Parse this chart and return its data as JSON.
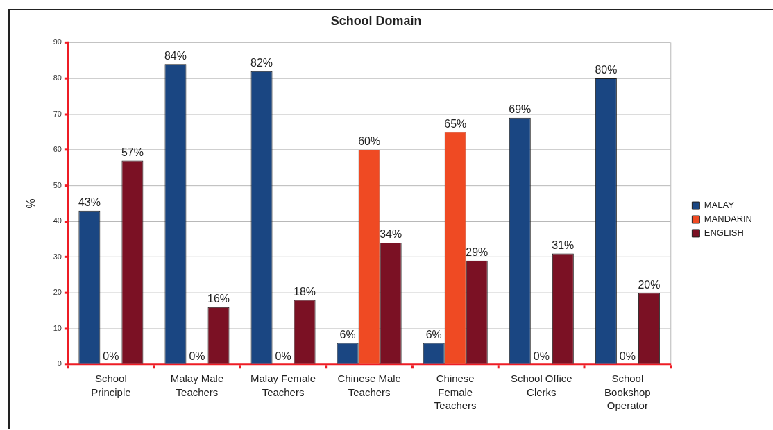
{
  "chart_data": {
    "type": "bar",
    "title": "School Domain",
    "ylabel": "%",
    "categories": [
      "School Principle",
      "Malay Male Teachers",
      "Malay Female Teachers",
      "Chinese Male Teachers",
      "Chinese Female Teachers",
      "School Office Clerks",
      "School Bookshop Operator"
    ],
    "series": [
      {
        "name": "MALAY",
        "color": "#1a4682",
        "values": [
          43,
          84,
          82,
          6,
          6,
          69,
          80
        ],
        "value_labels": [
          "43%",
          "84%",
          "82%",
          "6%",
          "6%",
          "69%",
          "80%"
        ]
      },
      {
        "name": "MANDARIN",
        "color": "#ef4a23",
        "values": [
          0,
          0,
          0,
          60,
          65,
          0,
          0
        ],
        "value_labels": [
          "0%",
          "0%",
          "0%",
          "60%",
          "65%",
          "0%",
          "0%"
        ]
      },
      {
        "name": "ENGLISH",
        "color": "#7b1124",
        "values": [
          57,
          16,
          18,
          34,
          29,
          31,
          20
        ],
        "value_labels": [
          "57%",
          "16%",
          "18%",
          "34%",
          "29%",
          "31%",
          "20%"
        ]
      }
    ],
    "ylim": [
      0,
      90
    ],
    "yticks": [
      0,
      10,
      20,
      30,
      40,
      50,
      60,
      70,
      80,
      90
    ],
    "grid": "y",
    "legend": "right"
  }
}
